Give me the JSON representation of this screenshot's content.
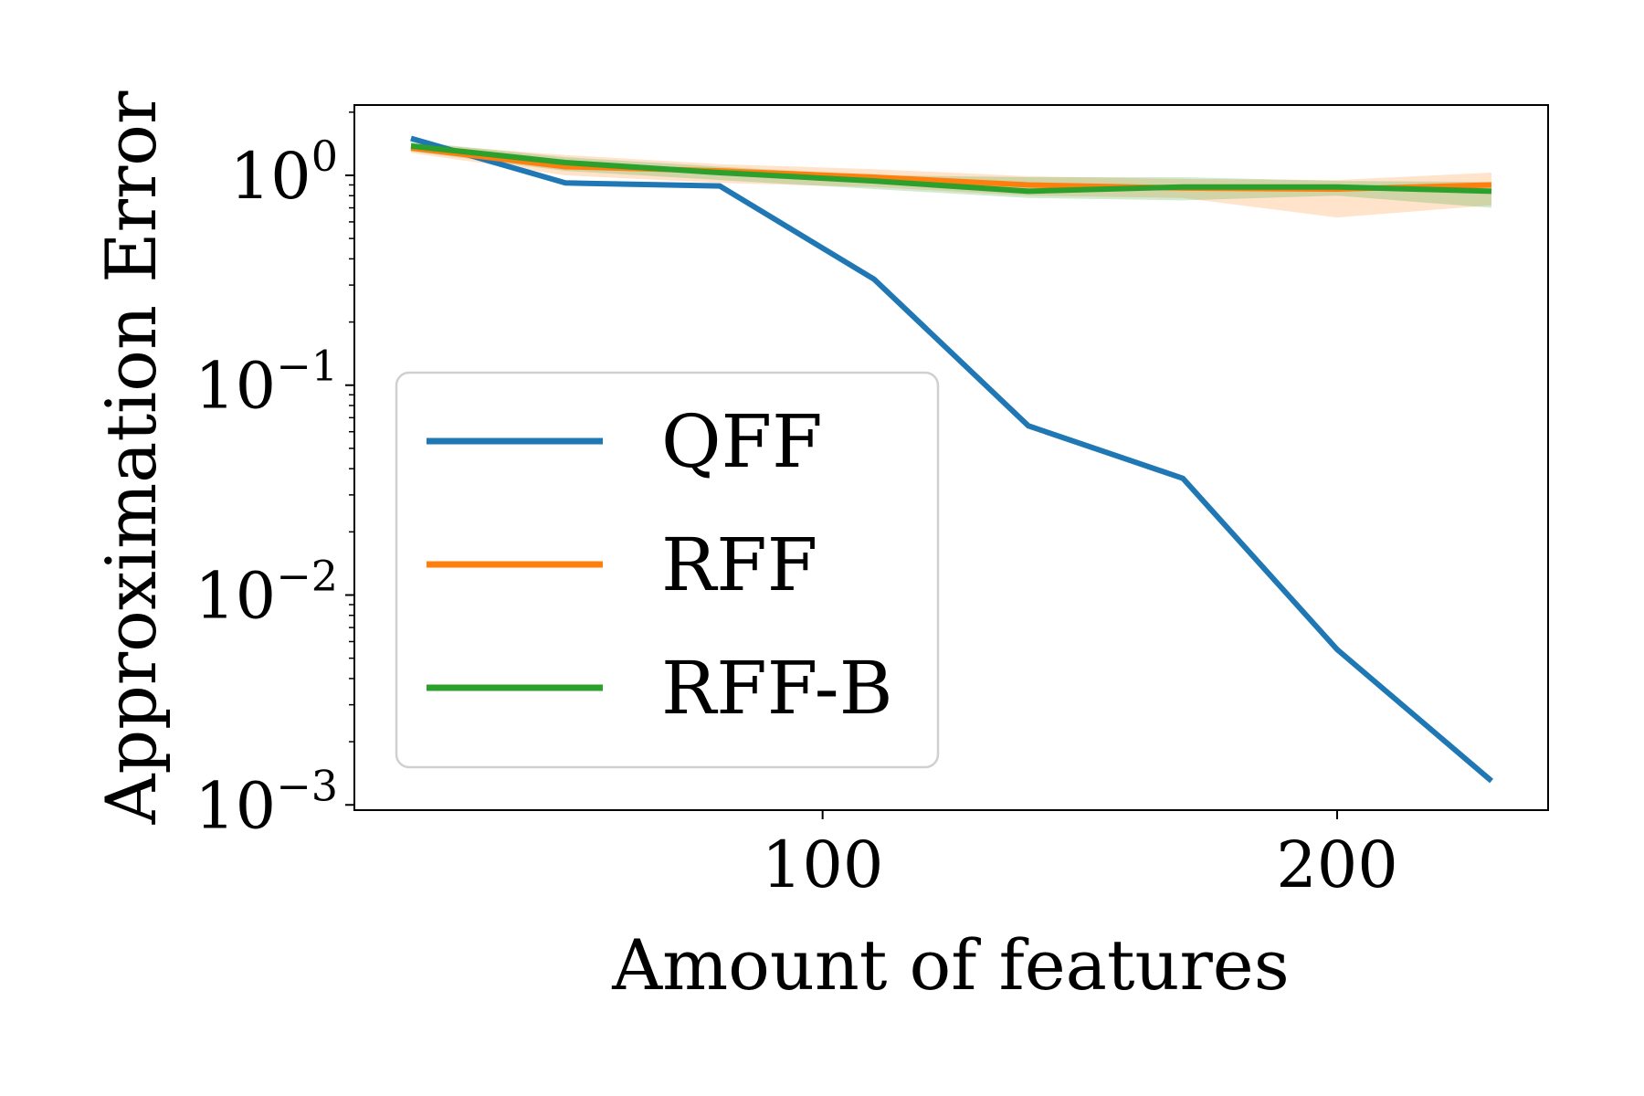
{
  "chart_data": {
    "type": "line",
    "xlabel": "Amount of features",
    "ylabel": "Approximation Error",
    "xlim": [
      9,
      241
    ],
    "ylim_log10": [
      -3.025,
      0.335
    ],
    "y_scale": "log",
    "grid": false,
    "legend_position": "center-left",
    "x_ticks": [
      {
        "value": 100,
        "label": "100"
      },
      {
        "value": 200,
        "label": "200"
      }
    ],
    "y_ticks": [
      {
        "exp": 0,
        "base": "10",
        "sup": "0"
      },
      {
        "exp": -1,
        "base": "10",
        "sup": "−1"
      },
      {
        "exp": -2,
        "base": "10",
        "sup": "−2"
      },
      {
        "exp": -3,
        "base": "10",
        "sup": "−3"
      }
    ],
    "x": [
      20,
      50,
      80,
      110,
      140,
      170,
      200,
      230
    ],
    "series": [
      {
        "name": "QFF",
        "color": "#1f77b4",
        "values": [
          1.5,
          0.92,
          0.89,
          0.32,
          0.064,
          0.036,
          0.0055,
          0.0013
        ]
      },
      {
        "name": "RFF",
        "color": "#ff7f0e",
        "values": [
          1.35,
          1.1,
          1.05,
          0.98,
          0.9,
          0.87,
          0.86,
          0.9
        ],
        "band_lower": [
          1.28,
          1.0,
          0.92,
          0.88,
          0.8,
          0.78,
          0.63,
          0.72
        ],
        "band_upper": [
          1.42,
          1.25,
          1.13,
          1.07,
          0.99,
          0.96,
          0.95,
          1.03
        ]
      },
      {
        "name": "RFF-B",
        "color": "#2ca02c",
        "values": [
          1.38,
          1.15,
          1.03,
          0.94,
          0.84,
          0.88,
          0.88,
          0.84
        ],
        "band_lower": [
          1.3,
          1.05,
          0.95,
          0.86,
          0.78,
          0.76,
          0.8,
          0.7
        ],
        "band_upper": [
          1.45,
          1.22,
          1.1,
          1.0,
          0.98,
          0.98,
          0.94,
          0.93
        ]
      }
    ]
  }
}
